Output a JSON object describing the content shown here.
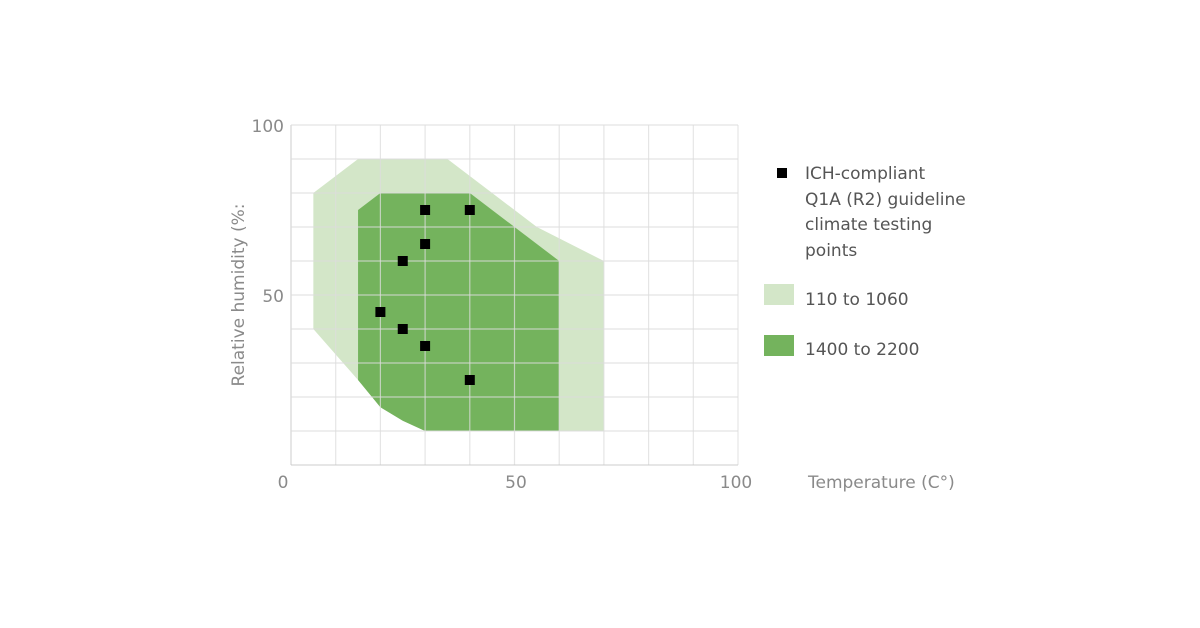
{
  "colors": {
    "light_zone": "#d3e6c8",
    "dark_zone": "#74b35d",
    "point": "#000000",
    "grid": "#dcdcdc",
    "axis_text": "#8a8a8a",
    "legend_text": "#555555"
  },
  "chart_data": {
    "type": "scatter",
    "title": "",
    "xlabel": "Temperature (C°)",
    "ylabel": "Relative humidity (%:",
    "xlim": [
      0,
      100
    ],
    "ylim": [
      0,
      100
    ],
    "x_ticks": [
      "0",
      "50",
      "100"
    ],
    "y_ticks": [
      "100",
      "50"
    ],
    "grid": true,
    "legend_position": "right",
    "areas": [
      {
        "name": "110 to 1060",
        "color": "#d3e6c8",
        "polygon": [
          [
            15,
            90
          ],
          [
            35,
            90
          ],
          [
            45,
            80
          ],
          [
            55,
            70
          ],
          [
            70,
            60
          ],
          [
            70,
            10
          ],
          [
            30,
            10
          ],
          [
            25,
            13
          ],
          [
            20,
            17
          ],
          [
            15,
            25
          ],
          [
            5,
            40
          ],
          [
            5,
            80
          ]
        ]
      },
      {
        "name": "1400 to 2200",
        "color": "#74b35d",
        "polygon": [
          [
            20,
            80
          ],
          [
            40,
            80
          ],
          [
            50,
            70
          ],
          [
            60,
            60
          ],
          [
            60,
            10
          ],
          [
            30,
            10
          ],
          [
            25,
            13
          ],
          [
            20,
            17
          ],
          [
            15,
            25
          ],
          [
            15,
            75
          ]
        ]
      }
    ],
    "series": [
      {
        "name": "ICH-compliant Q1A (R2) guideline climate testing points",
        "points": [
          [
            30,
            75
          ],
          [
            40,
            75
          ],
          [
            30,
            65
          ],
          [
            25,
            60
          ],
          [
            20,
            45
          ],
          [
            25,
            40
          ],
          [
            30,
            35
          ],
          [
            40,
            25
          ]
        ]
      }
    ]
  },
  "legend": {
    "points_label_lines": [
      "ICH-compliant",
      "Q1A (R2) guideline",
      "climate testing",
      "points"
    ],
    "light_label": "110 to 1060",
    "dark_label": "1400 to 2200"
  }
}
